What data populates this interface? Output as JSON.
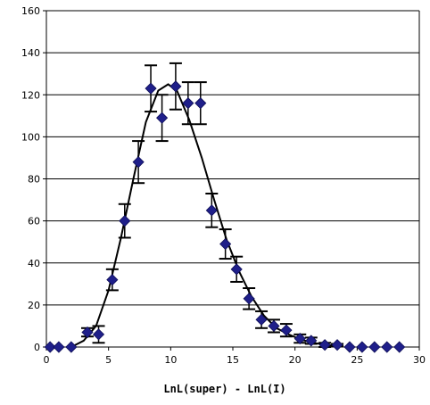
{
  "chart_data": {
    "type": "scatter",
    "title": "",
    "xlabel": "LnL(super) - LnL(I)",
    "ylabel": "",
    "xlim": [
      0,
      30
    ],
    "ylim": [
      0,
      160
    ],
    "x_ticks": [
      0,
      5,
      10,
      15,
      20,
      25,
      30
    ],
    "y_ticks": [
      0,
      20,
      40,
      60,
      80,
      100,
      120,
      140,
      160
    ],
    "grid": "horizontal",
    "legend": "none",
    "marker_color": "#1f1f8a",
    "line_color": "#000000",
    "series": [
      {
        "kind": "points",
        "points": [
          {
            "x": 0.3,
            "y": 0,
            "err": 0
          },
          {
            "x": 1.0,
            "y": 0,
            "err": 0
          },
          {
            "x": 2.0,
            "y": 0,
            "err": 0
          },
          {
            "x": 3.3,
            "y": 7,
            "err": 2
          },
          {
            "x": 4.2,
            "y": 6,
            "err": 4
          },
          {
            "x": 5.3,
            "y": 32,
            "err": 5
          },
          {
            "x": 6.3,
            "y": 60,
            "err": 8
          },
          {
            "x": 7.4,
            "y": 88,
            "err": 10
          },
          {
            "x": 8.4,
            "y": 123,
            "err": 11
          },
          {
            "x": 9.3,
            "y": 109,
            "err": 11
          },
          {
            "x": 10.4,
            "y": 124,
            "err": 11
          },
          {
            "x": 11.4,
            "y": 116,
            "err": 10
          },
          {
            "x": 12.4,
            "y": 116,
            "err": 10
          },
          {
            "x": 13.3,
            "y": 65,
            "err": 8
          },
          {
            "x": 14.4,
            "y": 49,
            "err": 7
          },
          {
            "x": 15.3,
            "y": 37,
            "err": 6
          },
          {
            "x": 16.3,
            "y": 23,
            "err": 5
          },
          {
            "x": 17.3,
            "y": 13,
            "err": 4
          },
          {
            "x": 18.3,
            "y": 10,
            "err": 3
          },
          {
            "x": 19.3,
            "y": 8,
            "err": 3
          },
          {
            "x": 20.4,
            "y": 4,
            "err": 2
          },
          {
            "x": 21.3,
            "y": 3,
            "err": 1.5
          },
          {
            "x": 22.4,
            "y": 1,
            "err": 1
          },
          {
            "x": 23.4,
            "y": 1,
            "err": 0.5
          },
          {
            "x": 24.4,
            "y": 0,
            "err": 0
          },
          {
            "x": 25.4,
            "y": 0,
            "err": 0
          },
          {
            "x": 26.4,
            "y": 0,
            "err": 0
          },
          {
            "x": 27.4,
            "y": 0,
            "err": 0
          },
          {
            "x": 28.4,
            "y": 0,
            "err": 0
          }
        ]
      },
      {
        "kind": "curve",
        "x": [
          2,
          3,
          4,
          5,
          6,
          7,
          8,
          9,
          9.8,
          10.5,
          11.5,
          12.5,
          13.5,
          14.5,
          15.5,
          16.5,
          17.5,
          18.5,
          19.5,
          20.5,
          21.5,
          22.5,
          23.5
        ],
        "y": [
          0,
          3,
          10,
          27,
          52,
          80,
          107,
          122,
          125,
          122,
          108,
          90,
          70,
          51,
          36,
          24,
          15,
          9,
          6,
          3.5,
          2,
          1,
          0.5
        ]
      }
    ]
  }
}
